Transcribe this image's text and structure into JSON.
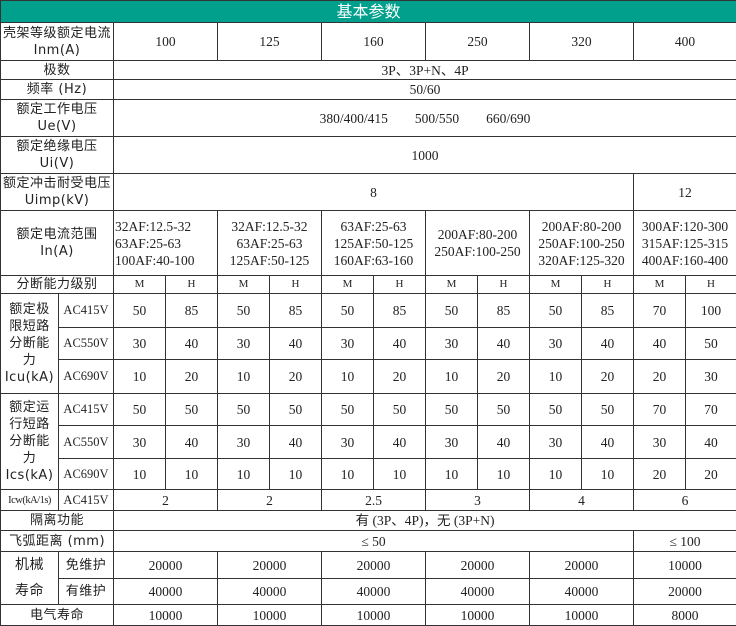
{
  "title": "基本参数",
  "colors": {
    "header_bg": "#00a08c",
    "header_text": "#ffffff",
    "border": "#333333"
  },
  "rows": {
    "frame_current": {
      "label": "壳架等级额定电流 Inm(A)",
      "values": [
        "100",
        "125",
        "160",
        "250",
        "320",
        "400"
      ]
    },
    "poles": {
      "label": "极数",
      "value": "3P、3P+N、4P"
    },
    "frequency": {
      "label": "频率 (Hz)",
      "value": "50/60"
    },
    "rated_voltage": {
      "label": "额定工作电压 Ue(V)",
      "value": "380/400/415　　500/550　　660/690"
    },
    "insulation_voltage": {
      "label": "额定绝缘电压 Ui(V)",
      "value": "1000"
    },
    "impulse_voltage": {
      "label": "额定冲击耐受电压 Uimp(kV)",
      "values": [
        "8",
        "12"
      ]
    },
    "current_range": {
      "label": "额定电流范围 In(A)",
      "values": [
        [
          "32AF:12.5-32",
          "63AF:25-63",
          "100AF:40-100"
        ],
        [
          "32AF:12.5-32",
          "63AF:25-63",
          "125AF:50-125"
        ],
        [
          "63AF:25-63",
          "125AF:50-125",
          "160AF:63-160"
        ],
        [
          "200AF:80-200",
          "250AF:100-250"
        ],
        [
          "200AF:80-200",
          "250AF:100-250",
          "320AF:125-320"
        ],
        [
          "300AF:120-300",
          "315AF:125-315",
          "400AF:160-400"
        ]
      ]
    },
    "breaking_level": {
      "label": "分断能力级别",
      "values": [
        "M",
        "H",
        "M",
        "H",
        "M",
        "H",
        "M",
        "H",
        "M",
        "H",
        "M",
        "H"
      ]
    },
    "icu": {
      "label": "额定极限短路分断能力 Icu(kA)",
      "rows": [
        {
          "voltage": "AC415V",
          "values": [
            "50",
            "85",
            "50",
            "85",
            "50",
            "85",
            "50",
            "85",
            "50",
            "85",
            "70",
            "100"
          ]
        },
        {
          "voltage": "AC550V",
          "values": [
            "30",
            "40",
            "30",
            "40",
            "30",
            "40",
            "30",
            "40",
            "30",
            "40",
            "40",
            "50"
          ]
        },
        {
          "voltage": "AC690V",
          "values": [
            "10",
            "20",
            "10",
            "20",
            "10",
            "20",
            "10",
            "20",
            "10",
            "20",
            "20",
            "30"
          ]
        }
      ]
    },
    "ics": {
      "label": "额定运行短路分断能力 Ics(kA)",
      "rows": [
        {
          "voltage": "AC415V",
          "values": [
            "50",
            "50",
            "50",
            "50",
            "50",
            "50",
            "50",
            "50",
            "50",
            "50",
            "70",
            "70"
          ]
        },
        {
          "voltage": "AC550V",
          "values": [
            "30",
            "40",
            "30",
            "40",
            "30",
            "40",
            "30",
            "40",
            "30",
            "40",
            "30",
            "40"
          ]
        },
        {
          "voltage": "AC690V",
          "values": [
            "10",
            "10",
            "10",
            "10",
            "10",
            "10",
            "10",
            "10",
            "10",
            "10",
            "20",
            "20"
          ]
        }
      ]
    },
    "icw": {
      "label": "Icw(kA/1s)",
      "voltage": "AC415V",
      "values": [
        "2",
        "2",
        "2.5",
        "3",
        "4",
        "6"
      ]
    },
    "isolation": {
      "label": "隔离功能",
      "value": "有 (3P、4P)，无 (3P+N)"
    },
    "arc_distance": {
      "label": "飞弧距离 (mm)",
      "values": [
        "≤ 50",
        "≤ 100"
      ]
    },
    "mechanical_life": {
      "label": "机械寿命",
      "rows": [
        {
          "type": "免维护",
          "values": [
            "20000",
            "20000",
            "20000",
            "20000",
            "20000",
            "10000"
          ]
        },
        {
          "type": "有维护",
          "values": [
            "40000",
            "40000",
            "40000",
            "40000",
            "40000",
            "20000"
          ]
        }
      ]
    },
    "electrical_life": {
      "label": "电气寿命",
      "values": [
        "10000",
        "10000",
        "10000",
        "10000",
        "10000",
        "8000"
      ]
    }
  }
}
